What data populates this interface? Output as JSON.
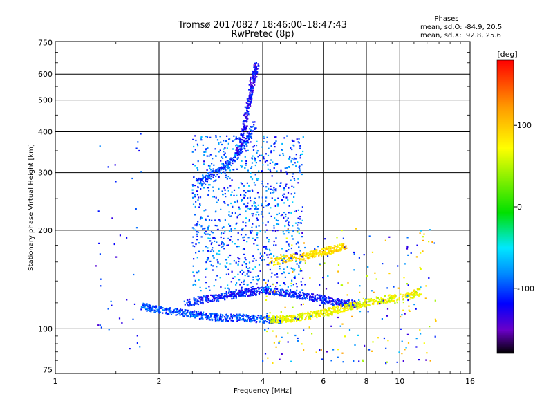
{
  "chart_data": {
    "type": "scatter",
    "title": "Tromsø 20170827 18:46:00–18:47:43",
    "subtitle": "RwPretec (8p)",
    "xlabel": "Frequency [MHz]",
    "ylabel": "Stationary phase Virtual Height [km]",
    "x_scale": "log",
    "y_scale": "log",
    "xlim": [
      1,
      16
    ],
    "ylim": [
      73,
      755
    ],
    "x_ticks": [
      1,
      2,
      4,
      6,
      8,
      10,
      16
    ],
    "x_tick_labels": [
      "1",
      "2",
      "4",
      "6",
      "8",
      "10",
      "16"
    ],
    "y_ticks": [
      75,
      100,
      200,
      300,
      400,
      500,
      600,
      750
    ],
    "y_tick_labels": [
      "75",
      "100",
      "200",
      "300",
      "400",
      "500",
      "600",
      "750"
    ],
    "grid": true,
    "phase_stats": {
      "title": "Phases",
      "o_line": "mean, sd,O: -84.9, 20.5",
      "x_line": "mean, sd,X:  92.8, 25.6"
    },
    "colorbar": {
      "label": "[deg]",
      "range": [
        -180,
        180
      ],
      "ticks": [
        100,
        0,
        -100
      ],
      "tick_labels": [
        "100",
        "0",
        "-100"
      ],
      "colormap": "rainbow (black → purple → blue → cyan → green → yellow → orange → red)"
    },
    "traces": [
      {
        "x": [
          1.78,
          1.95,
          2.2,
          2.5,
          2.8,
          3.1,
          3.5,
          4.0,
          4.5
        ],
        "y": [
          117,
          115,
          113,
          111,
          109,
          108,
          108,
          107,
          106
        ],
        "phase": -95
      },
      {
        "x": [
          2.4,
          2.7,
          3.0,
          3.3,
          3.6,
          4.0,
          4.5,
          5.0,
          5.6,
          6.2,
          6.8,
          7.5
        ],
        "y": [
          120,
          123,
          125,
          127,
          129,
          131,
          129,
          127,
          125,
          122,
          120,
          119
        ],
        "phase": -110
      },
      {
        "x": [
          2.6,
          2.9,
          3.2,
          3.5,
          3.8
        ],
        "y": [
          280,
          300,
          320,
          360,
          420
        ],
        "phase": -100
      },
      {
        "x": [
          3.4,
          3.55,
          3.65,
          3.75,
          3.85
        ],
        "y": [
          350,
          420,
          500,
          580,
          640
        ],
        "phase": -120
      },
      {
        "x": [
          4.2,
          4.6,
          5.0,
          5.5,
          6.0,
          6.5,
          7.2,
          8.0,
          9.0,
          10.5,
          11.5
        ],
        "y": [
          107,
          107,
          108,
          110,
          112,
          114,
          117,
          120,
          123,
          126,
          130
        ],
        "phase": 70
      },
      {
        "x": [
          4.2,
          4.8,
          5.5,
          6.0,
          6.5,
          7.0
        ],
        "y": [
          160,
          165,
          168,
          172,
          175,
          180
        ],
        "phase": 90
      }
    ]
  }
}
